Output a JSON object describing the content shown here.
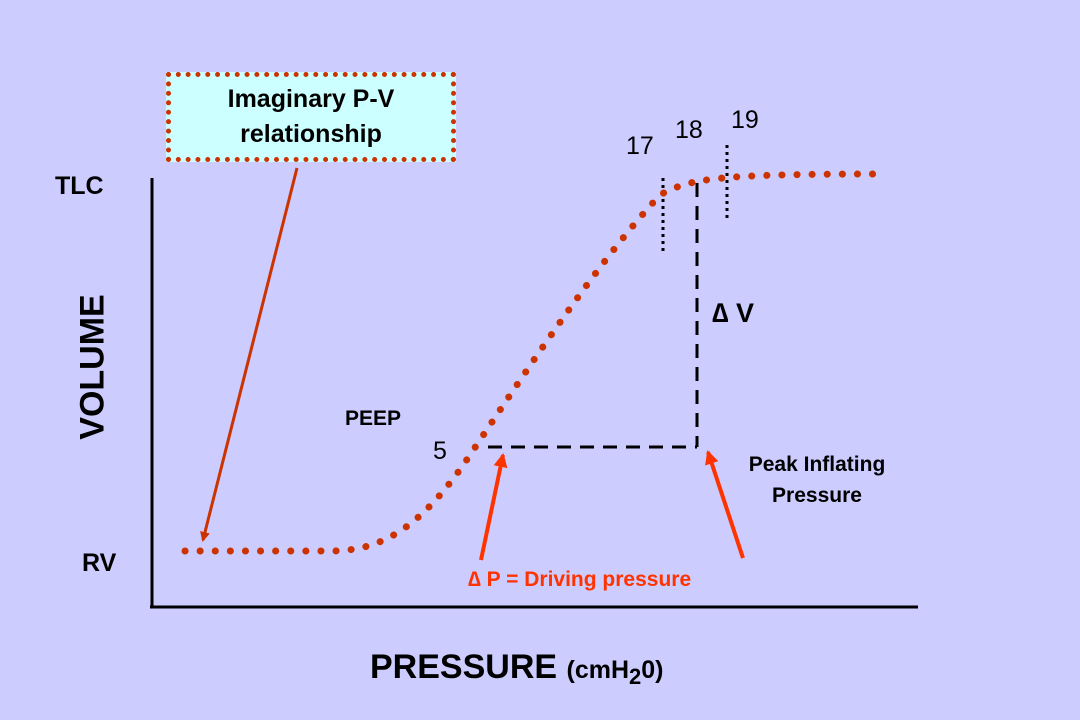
{
  "box": {
    "line1": "Imaginary P-V",
    "line2": "relationship"
  },
  "labels": {
    "tlc": "TLC",
    "rv": "RV",
    "volume": "VOLUME",
    "pressure": "PRESSURE",
    "pressure_unit_pre": "(cmH",
    "pressure_unit_sub": "2",
    "pressure_unit_post": "0)",
    "peep": "PEEP",
    "peep_value": "5",
    "p17": "17",
    "p18": "18",
    "p19": "19",
    "delta_v": "∆ V",
    "peak_line1": "Peak Inflating",
    "peak_line2": "Pressure",
    "delta_p": "∆ P = Driving pressure"
  },
  "colors": {
    "background": "#ccccff",
    "curve": "#cc3300",
    "arrow": "#ff3300",
    "box_fill": "#ccffff"
  }
}
